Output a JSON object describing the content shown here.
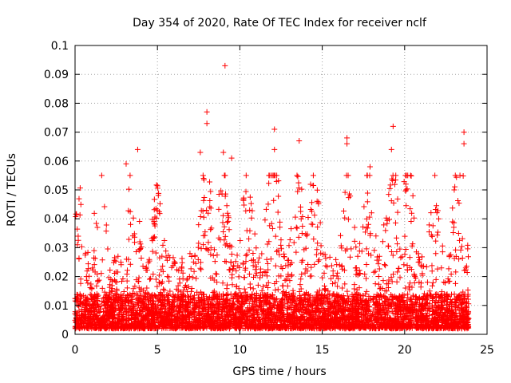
{
  "chart_data": {
    "type": "scatter",
    "title": "Day 354 of 2020, Rate Of TEC Index for receiver nclf",
    "xlabel": "GPS time / hours",
    "ylabel": "ROTI / TECUs",
    "xlim": [
      0,
      25
    ],
    "ylim": [
      0,
      0.1
    ],
    "x_ticks": [
      "0",
      "5",
      "10",
      "15",
      "20",
      "25"
    ],
    "y_ticks": [
      "0",
      "0.01",
      "0.02",
      "0.03",
      "0.04",
      "0.05",
      "0.06",
      "0.07",
      "0.08",
      "0.09",
      "0.1"
    ],
    "grid": true,
    "legend": "none",
    "marker": "plus",
    "color": "#ff0000",
    "series": [
      {
        "x_range": [
          0,
          23.9
        ],
        "typical_range": [
          0.002,
          0.035
        ],
        "outliers": [
          {
            "x": 9.1,
            "y": 0.093
          },
          {
            "x": 8.0,
            "y": 0.077
          },
          {
            "x": 8.0,
            "y": 0.073
          },
          {
            "x": 12.1,
            "y": 0.071
          },
          {
            "x": 19.3,
            "y": 0.072
          },
          {
            "x": 23.6,
            "y": 0.07
          },
          {
            "x": 13.6,
            "y": 0.067
          },
          {
            "x": 16.5,
            "y": 0.068
          },
          {
            "x": 16.5,
            "y": 0.066
          },
          {
            "x": 23.6,
            "y": 0.066
          },
          {
            "x": 3.8,
            "y": 0.064
          },
          {
            "x": 7.6,
            "y": 0.063
          },
          {
            "x": 9.0,
            "y": 0.063
          },
          {
            "x": 12.1,
            "y": 0.064
          },
          {
            "x": 19.2,
            "y": 0.064
          },
          {
            "x": 9.5,
            "y": 0.061
          },
          {
            "x": 3.1,
            "y": 0.059
          },
          {
            "x": 17.9,
            "y": 0.058
          },
          {
            "x": 7.8,
            "y": 0.054
          }
        ]
      }
    ]
  }
}
